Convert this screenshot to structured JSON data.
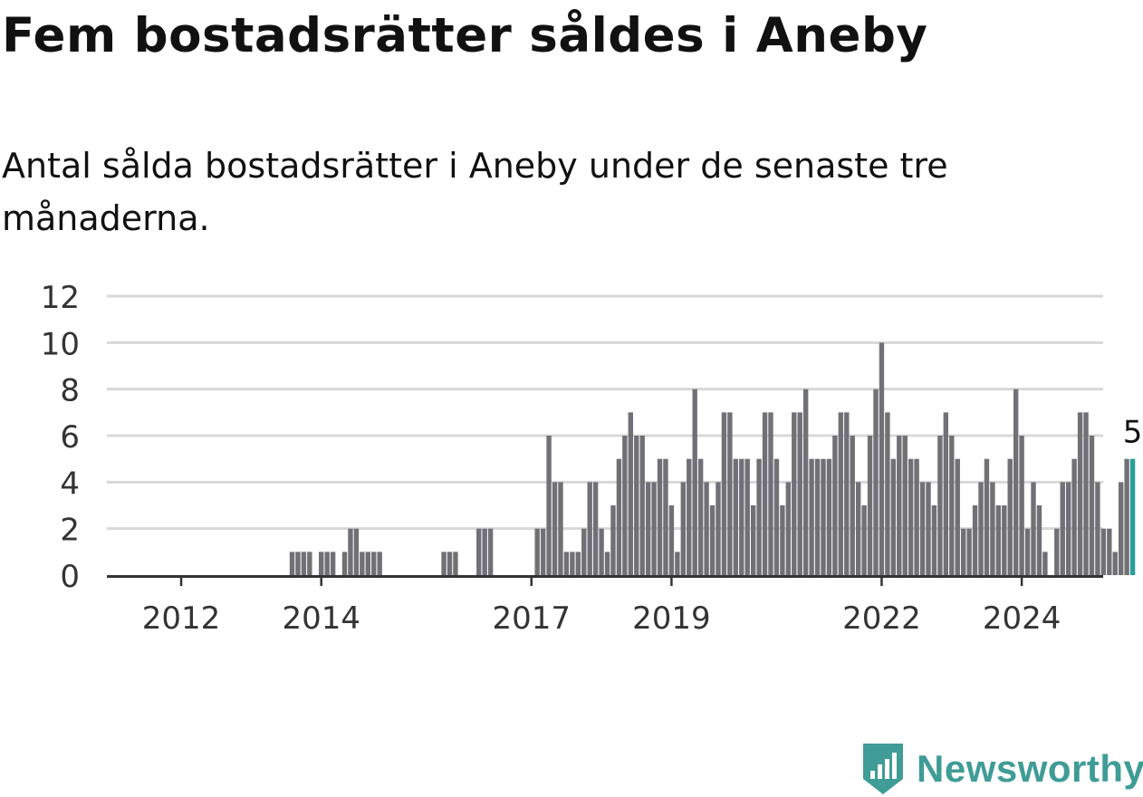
{
  "header": {
    "title": "Fem bostadsrätter såldes i Aneby",
    "subtitle": "Antal sålda bostadsrätter i Aneby under de senaste tre månaderna."
  },
  "colors": {
    "bar": "#717076",
    "highlight": "#2a9d98",
    "grid": "#d8d8d8",
    "axis": "#333333",
    "brand": "#3f9c96",
    "text": "#111111"
  },
  "chart_data": {
    "type": "bar",
    "x_start": "2011-01",
    "interval": "month",
    "x_ticks": [
      "2012",
      "2014",
      "2017",
      "2019",
      "2022",
      "2024"
    ],
    "y_ticks": [
      "0",
      "2",
      "4",
      "6",
      "8",
      "10",
      "12"
    ],
    "ylim": [
      0,
      12
    ],
    "grid": true,
    "values": [
      0,
      0,
      0,
      0,
      0,
      0,
      0,
      0,
      0,
      0,
      0,
      0,
      0,
      0,
      0,
      0,
      0,
      0,
      0,
      0,
      0,
      0,
      0,
      0,
      0,
      0,
      0,
      0,
      0,
      0,
      0,
      1,
      1,
      1,
      1,
      0,
      1,
      1,
      1,
      0,
      1,
      2,
      2,
      1,
      1,
      1,
      1,
      0,
      0,
      0,
      0,
      0,
      0,
      0,
      0,
      0,
      0,
      1,
      1,
      1,
      0,
      0,
      0,
      2,
      2,
      2,
      0,
      0,
      0,
      0,
      0,
      0,
      0,
      2,
      2,
      6,
      4,
      4,
      1,
      1,
      1,
      2,
      4,
      4,
      2,
      1,
      3,
      5,
      6,
      7,
      6,
      6,
      4,
      4,
      5,
      5,
      3,
      1,
      4,
      5,
      8,
      5,
      4,
      3,
      4,
      7,
      7,
      5,
      5,
      5,
      3,
      5,
      7,
      7,
      5,
      3,
      4,
      7,
      7,
      8,
      5,
      5,
      5,
      5,
      6,
      7,
      7,
      6,
      4,
      3,
      6,
      8,
      10,
      7,
      5,
      6,
      6,
      5,
      5,
      4,
      4,
      3,
      6,
      7,
      6,
      5,
      2,
      2,
      3,
      4,
      5,
      4,
      3,
      3,
      5,
      8,
      6,
      2,
      4,
      3,
      1,
      0,
      2,
      4,
      4,
      5,
      7,
      7,
      6,
      4,
      2,
      2,
      1,
      4,
      5,
      5
    ],
    "highlight_label": "5"
  },
  "logo": {
    "text": "Newsworthy",
    "icon": "newsworthy-logo-icon"
  }
}
